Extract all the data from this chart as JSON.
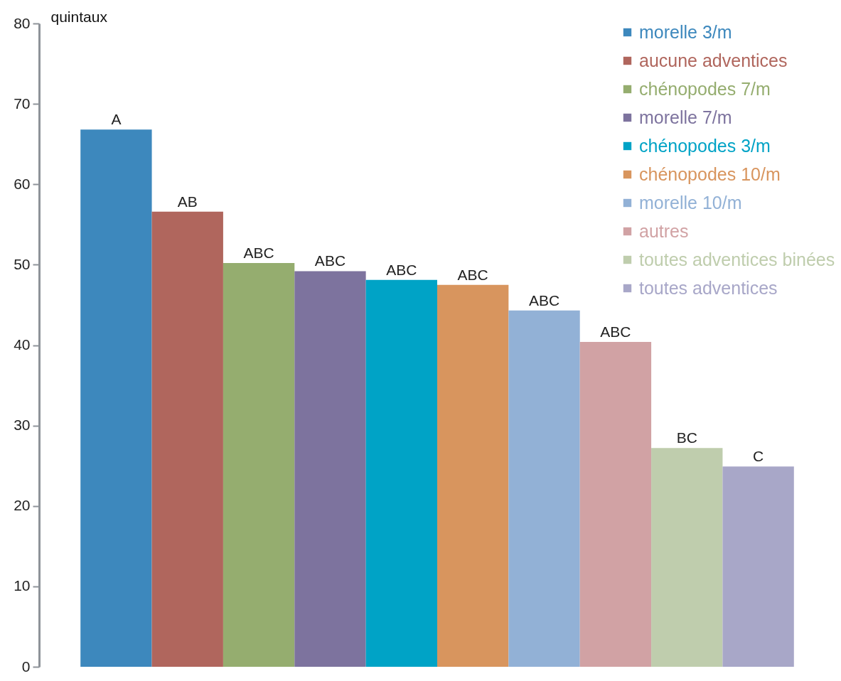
{
  "chart_data": {
    "type": "bar",
    "ylabel": "quintaux",
    "categories": [
      null
    ],
    "ylim": [
      0,
      80
    ],
    "yticks": [
      0,
      10,
      20,
      30,
      40,
      50,
      60,
      70,
      80
    ],
    "grid": false,
    "legend": "top right",
    "series": [
      {
        "name": "morelle 3/m",
        "color": "#3d88bd",
        "values": [
          66.8
        ],
        "value_labels": [
          "A"
        ]
      },
      {
        "name": "aucune adventices",
        "color": "#b0665d",
        "values": [
          56.6
        ],
        "value_labels": [
          "AB"
        ]
      },
      {
        "name": "chénopodes 7/m",
        "color": "#95ad6f",
        "values": [
          50.2
        ],
        "value_labels": [
          "ABC"
        ]
      },
      {
        "name": "morelle 7/m",
        "color": "#7d739e",
        "values": [
          49.2
        ],
        "value_labels": [
          "ABC"
        ]
      },
      {
        "name": "chénopodes 3/m",
        "color": "#00a3c6",
        "values": [
          48.1
        ],
        "value_labels": [
          "ABC"
        ]
      },
      {
        "name": "chénopodes 10/m",
        "color": "#d8955e",
        "values": [
          47.5
        ],
        "value_labels": [
          "ABC"
        ]
      },
      {
        "name": "morelle 10/m",
        "color": "#92b1d6",
        "values": [
          44.3
        ],
        "value_labels": [
          "ABC"
        ]
      },
      {
        "name": "autres",
        "color": "#d1a2a4",
        "values": [
          40.4
        ],
        "value_labels": [
          "ABC"
        ]
      },
      {
        "name": "toutes adventices binées",
        "color": "#bfcdad",
        "values": [
          27.2
        ],
        "value_labels": [
          "BC"
        ]
      },
      {
        "name": "toutes adventices",
        "color": "#a8a7c8",
        "values": [
          24.9
        ],
        "value_labels": [
          "C"
        ]
      }
    ]
  }
}
